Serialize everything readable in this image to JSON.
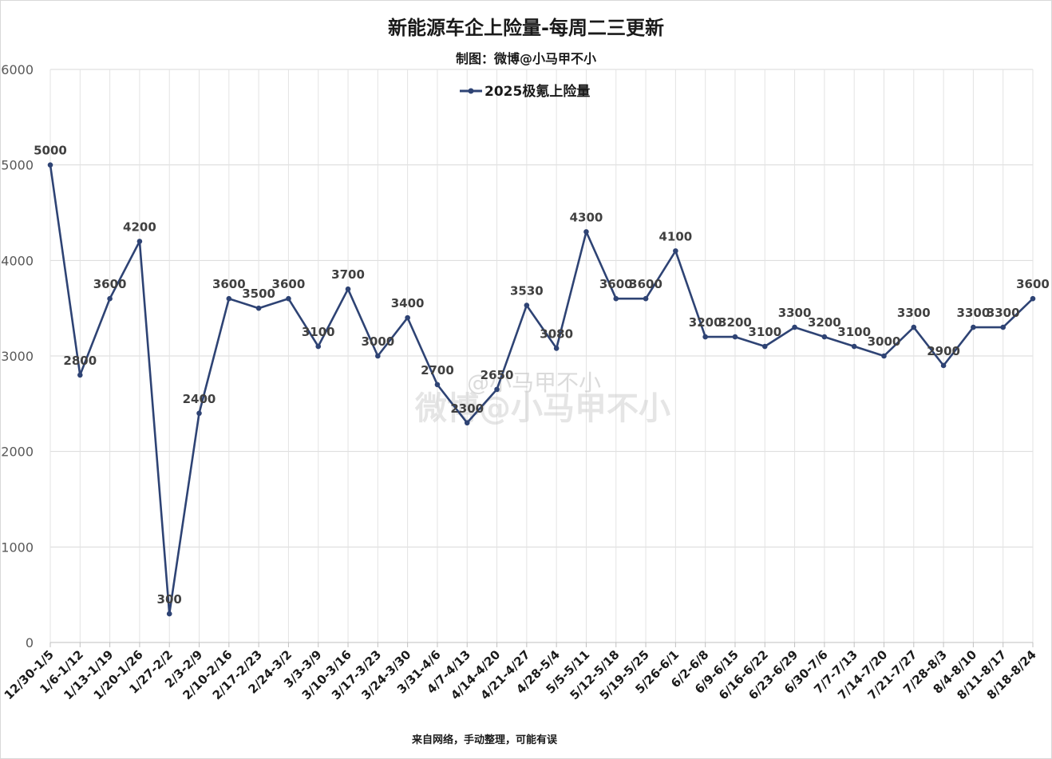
{
  "chart_data": {
    "type": "line",
    "title": "新能源车企上险量-每周二三更新",
    "subtitle": "制图：微博@小马甲不小",
    "footer": "来自网络，手动整理，可能有误",
    "watermark_line1": "@小马甲不小",
    "watermark_line2": "微博@小马甲不小",
    "ylim": [
      0,
      6000
    ],
    "yticks": [
      0,
      1000,
      2000,
      3000,
      4000,
      5000,
      6000
    ],
    "grid": true,
    "legend_position": "top-center",
    "categories": [
      "12/30-1/5",
      "1/6-1/12",
      "1/13-1/19",
      "1/20-1/26",
      "1/27-2/2",
      "2/3-2/9",
      "2/10-2/16",
      "2/17-2/23",
      "2/24-3/2",
      "3/3-3/9",
      "3/10-3/16",
      "3/17-3/23",
      "3/24-3/30",
      "3/31-4/6",
      "4/7-4/13",
      "4/14-4/20",
      "4/21-4/27",
      "4/28-5/4",
      "5/5-5/11",
      "5/12-5/18",
      "5/19-5/25",
      "5/26-6/1",
      "6/2-6/8",
      "6/9-6/15",
      "6/16-6/22",
      "6/23-6/29",
      "6/30-7/6",
      "7/7-7/13",
      "7/14-7/20",
      "7/21-7/27",
      "7/28-8/3",
      "8/4-8/10",
      "8/11-8/17",
      "8/18-8/24"
    ],
    "series": [
      {
        "name": "2025极氪上险量",
        "color": "#2e4374",
        "values": [
          5000,
          2800,
          3600,
          4200,
          300,
          2400,
          3600,
          3500,
          3600,
          3100,
          3700,
          3000,
          3400,
          2700,
          2300,
          2650,
          3530,
          3080,
          4300,
          3600,
          3600,
          4100,
          3200,
          3200,
          3100,
          3300,
          3200,
          3100,
          3000,
          3300,
          2900,
          3300,
          3300,
          3600
        ]
      }
    ]
  }
}
